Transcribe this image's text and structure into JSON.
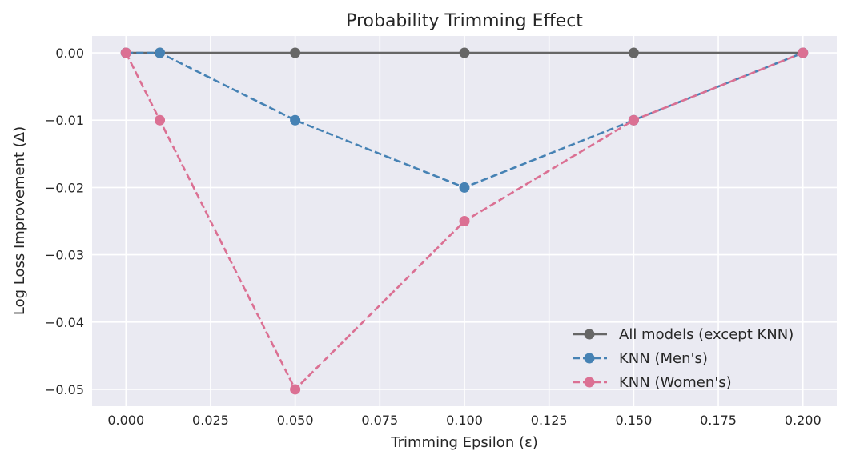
{
  "chart_data": {
    "type": "line",
    "title": "Probability Trimming Effect",
    "xlabel": "Trimming Epsilon (ε)",
    "ylabel": "Log Loss Improvement (Δ)",
    "xlim": [
      -0.01,
      0.21
    ],
    "ylim": [
      -0.0525,
      0.0025
    ],
    "xticks": [
      0.0,
      0.025,
      0.05,
      0.075,
      0.1,
      0.125,
      0.15,
      0.175,
      0.2
    ],
    "xtick_labels": [
      "0.000",
      "0.025",
      "0.050",
      "0.075",
      "0.100",
      "0.125",
      "0.150",
      "0.175",
      "0.200"
    ],
    "yticks": [
      0.0,
      -0.01,
      -0.02,
      -0.03,
      -0.04,
      -0.05
    ],
    "ytick_labels": [
      "0.00",
      "−0.01",
      "−0.02",
      "−0.03",
      "−0.04",
      "−0.05"
    ],
    "grid": true,
    "background": "#eaeaf2",
    "legend_position": "lower-right",
    "series": [
      {
        "name": "All models (except KNN)",
        "color": "#666666",
        "linestyle": "solid",
        "x": [
          0.0,
          0.01,
          0.05,
          0.1,
          0.15,
          0.2
        ],
        "y": [
          0.0,
          0.0,
          0.0,
          0.0,
          0.0,
          0.0
        ]
      },
      {
        "name": "KNN (Men's)",
        "color": "#4682b4",
        "linestyle": "dashed",
        "x": [
          0.0,
          0.01,
          0.05,
          0.1,
          0.15,
          0.2
        ],
        "y": [
          0.0,
          0.0,
          -0.01,
          -0.02,
          -0.01,
          0.0
        ]
      },
      {
        "name": "KNN (Women's)",
        "color": "#db7093",
        "linestyle": "dashed",
        "x": [
          0.0,
          0.01,
          0.05,
          0.1,
          0.15,
          0.2
        ],
        "y": [
          0.0,
          -0.01,
          -0.05,
          -0.025,
          -0.01,
          0.0
        ]
      }
    ]
  }
}
